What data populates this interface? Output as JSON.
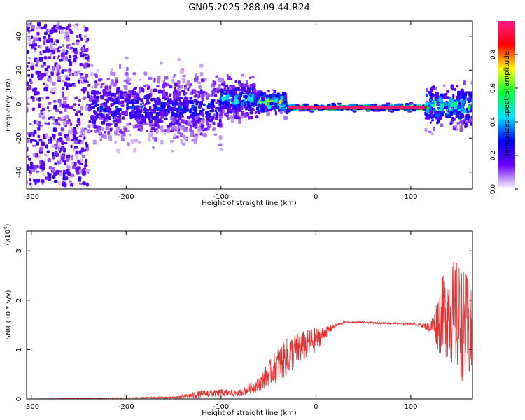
{
  "title": "GN05.2025.288.09.44.R24",
  "chart_data": [
    {
      "type": "heatmap",
      "xlabel": "Height of straight line (km)",
      "ylabel": "Frequency (Hz)",
      "xlim": [
        -305,
        165
      ],
      "ylim": [
        -50,
        49
      ],
      "x_ticks": [
        -300,
        -200,
        -100,
        0,
        100
      ],
      "y_ticks": [
        -40,
        -20,
        0,
        20,
        40
      ],
      "colorbar": {
        "label": "Normalized spectral amplitude",
        "range": [
          0,
          1
        ],
        "ticks": [
          0.0,
          0.2,
          0.4,
          0.6,
          0.8
        ],
        "colors": [
          "#ffffff",
          "#6a00ff",
          "#0000ff",
          "#00e5ff",
          "#00ff40",
          "#ffff00",
          "#ff0000",
          "#ff1a8c"
        ]
      },
      "bands": [
        {
          "x": [
            -305,
            -240
          ],
          "freq_center": 0,
          "freq_spread": 48,
          "amplitude": 0.15
        },
        {
          "x": [
            -240,
            -100
          ],
          "freq_center": -2,
          "freq_spread": 10,
          "amplitude": 0.3
        },
        {
          "x": [
            -100,
            -60
          ],
          "freq_center": 3,
          "freq_spread": 6,
          "amplitude": 0.45
        },
        {
          "x": [
            -60,
            -30
          ],
          "freq_center": 1,
          "freq_spread": 3,
          "amplitude": 0.7
        },
        {
          "x": [
            -30,
            115
          ],
          "freq_center": -2,
          "freq_spread": 1,
          "amplitude": 1.0
        },
        {
          "x": [
            115,
            165
          ],
          "freq_center": -1,
          "freq_spread": 6,
          "amplitude": 0.55
        }
      ]
    },
    {
      "type": "line",
      "ylabel": "SNR (10 * v/v)",
      "exponent_label": "(x10",
      "exponent_power": "4",
      "xlabel": "Height of straight line (km)",
      "xlim": [
        -305,
        165
      ],
      "ylim": [
        0,
        3.4
      ],
      "x_ticks": [
        -300,
        -200,
        -100,
        0,
        100
      ],
      "y_ticks": [
        0,
        1,
        2,
        3
      ],
      "series": [
        {
          "color": "#e83030",
          "x": [
            -305,
            -250,
            -200,
            -150,
            -140,
            -120,
            -100,
            -80,
            -60,
            -50,
            -40,
            -30,
            -20,
            -10,
            0,
            10,
            20,
            30,
            40,
            50,
            60,
            80,
            100,
            110,
            120,
            125,
            130,
            140,
            150,
            160,
            165
          ],
          "y": [
            0.0,
            0.01,
            0.02,
            0.03,
            0.05,
            0.1,
            0.12,
            0.12,
            0.3,
            0.5,
            0.7,
            0.85,
            1.0,
            1.1,
            1.2,
            1.35,
            1.48,
            1.55,
            1.55,
            1.55,
            1.54,
            1.53,
            1.52,
            1.5,
            1.45,
            1.5,
            1.6,
            1.8,
            1.6,
            1.4,
            1.2
          ],
          "noise": [
            0.0,
            0.005,
            0.01,
            0.02,
            0.04,
            0.08,
            0.08,
            0.07,
            0.15,
            0.25,
            0.35,
            0.4,
            0.35,
            0.3,
            0.25,
            0.12,
            0.04,
            0.02,
            0.02,
            0.02,
            0.02,
            0.02,
            0.02,
            0.03,
            0.1,
            0.3,
            0.7,
            1.0,
            1.2,
            1.1,
            0.9
          ]
        }
      ]
    }
  ]
}
